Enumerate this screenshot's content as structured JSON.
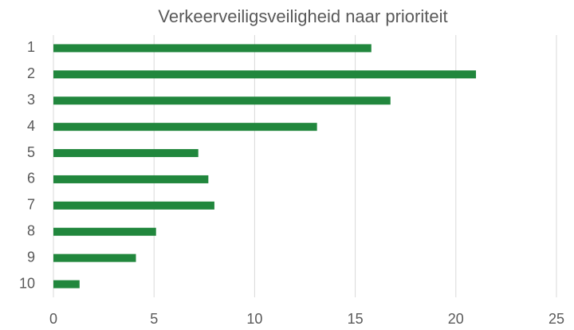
{
  "chart_data": {
    "type": "bar",
    "orientation": "horizontal",
    "title": "Verkeerveiligsveiligheid naar prioriteit",
    "categories": [
      "1",
      "2",
      "3",
      "4",
      "5",
      "6",
      "7",
      "8",
      "9",
      "10"
    ],
    "values": [
      15.8,
      21.0,
      16.75,
      13.1,
      7.2,
      7.7,
      8.0,
      5.1,
      4.1,
      1.3
    ],
    "color": "#21873d",
    "xlim": [
      0,
      25
    ],
    "xticks": [
      0,
      5,
      10,
      15,
      20,
      25
    ],
    "grid": true
  }
}
